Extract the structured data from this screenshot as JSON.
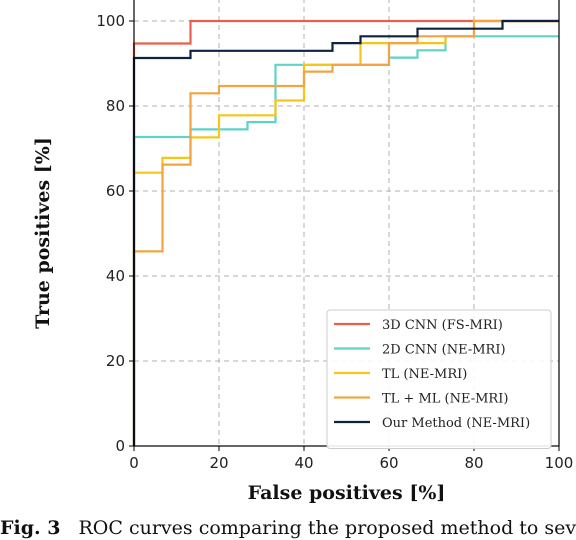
{
  "chart_data": {
    "type": "line",
    "step": true,
    "xlabel": "False positives [%]",
    "ylabel": "True positives [%]",
    "xlim": [
      0,
      100
    ],
    "ylim": [
      0,
      100
    ],
    "x_ticks": [
      "0",
      "20",
      "40",
      "60",
      "80",
      "100"
    ],
    "y_ticks": [
      "0",
      "20",
      "40",
      "60",
      "80",
      "100"
    ],
    "grid": true,
    "legend_position": "lower-right",
    "series": [
      {
        "name": "3D CNN (FS-MRI)",
        "color": "#e8604c",
        "points": [
          [
            0,
            0
          ],
          [
            0,
            94.7
          ],
          [
            13.3,
            94.7
          ],
          [
            13.3,
            100
          ],
          [
            100,
            100
          ]
        ]
      },
      {
        "name": "2D CNN (NE-MRI)",
        "color": "#5fd3c8",
        "points": [
          [
            0,
            0
          ],
          [
            0,
            72.7
          ],
          [
            13.3,
            72.7
          ],
          [
            13.3,
            74.5
          ],
          [
            26.7,
            74.5
          ],
          [
            26.7,
            76.2
          ],
          [
            33.3,
            76.2
          ],
          [
            33.3,
            89.7
          ],
          [
            60,
            89.7
          ],
          [
            60,
            91.4
          ],
          [
            66.7,
            91.4
          ],
          [
            66.7,
            93.1
          ],
          [
            73.3,
            93.1
          ],
          [
            73.3,
            96.4
          ],
          [
            100,
            96.4
          ]
        ]
      },
      {
        "name": "TL (NE-MRI)",
        "color": "#f5c518",
        "points": [
          [
            0,
            0
          ],
          [
            0,
            64.3
          ],
          [
            6.7,
            64.3
          ],
          [
            6.7,
            67.8
          ],
          [
            13.3,
            67.8
          ],
          [
            13.3,
            72.6
          ],
          [
            20,
            72.6
          ],
          [
            20,
            77.8
          ],
          [
            33.3,
            77.8
          ],
          [
            33.3,
            81.3
          ],
          [
            40,
            81.3
          ],
          [
            40,
            89.7
          ],
          [
            53.3,
            89.7
          ],
          [
            53.3,
            94.8
          ],
          [
            73.3,
            94.8
          ],
          [
            73.3,
            96.4
          ],
          [
            80,
            96.4
          ],
          [
            80,
            100
          ],
          [
            100,
            100
          ]
        ]
      },
      {
        "name": "TL + ML (NE-MRI)",
        "color": "#f2a444",
        "points": [
          [
            0,
            0
          ],
          [
            0,
            45.8
          ],
          [
            6.7,
            45.8
          ],
          [
            6.7,
            66.2
          ],
          [
            13.3,
            66.2
          ],
          [
            13.3,
            83
          ],
          [
            20,
            83
          ],
          [
            20,
            84.7
          ],
          [
            40,
            84.7
          ],
          [
            40,
            88.1
          ],
          [
            46.7,
            88.1
          ],
          [
            46.7,
            89.7
          ],
          [
            60,
            89.7
          ],
          [
            60,
            94.8
          ],
          [
            66.7,
            94.8
          ],
          [
            66.7,
            96.4
          ],
          [
            80,
            96.4
          ],
          [
            80,
            100
          ],
          [
            100,
            100
          ]
        ]
      },
      {
        "name": "Our Method (NE-MRI)",
        "color": "#0d2340",
        "points": [
          [
            0,
            0
          ],
          [
            0,
            91.3
          ],
          [
            13.3,
            91.3
          ],
          [
            13.3,
            93
          ],
          [
            46.7,
            93
          ],
          [
            46.7,
            94.8
          ],
          [
            53.3,
            94.8
          ],
          [
            53.3,
            96.4
          ],
          [
            66.7,
            96.4
          ],
          [
            66.7,
            98.2
          ],
          [
            86.7,
            98.2
          ],
          [
            86.7,
            100
          ],
          [
            100,
            100
          ]
        ]
      }
    ]
  },
  "caption": {
    "label": "Fig. 3",
    "text": "ROC curves comparing the proposed method to several baselines."
  }
}
